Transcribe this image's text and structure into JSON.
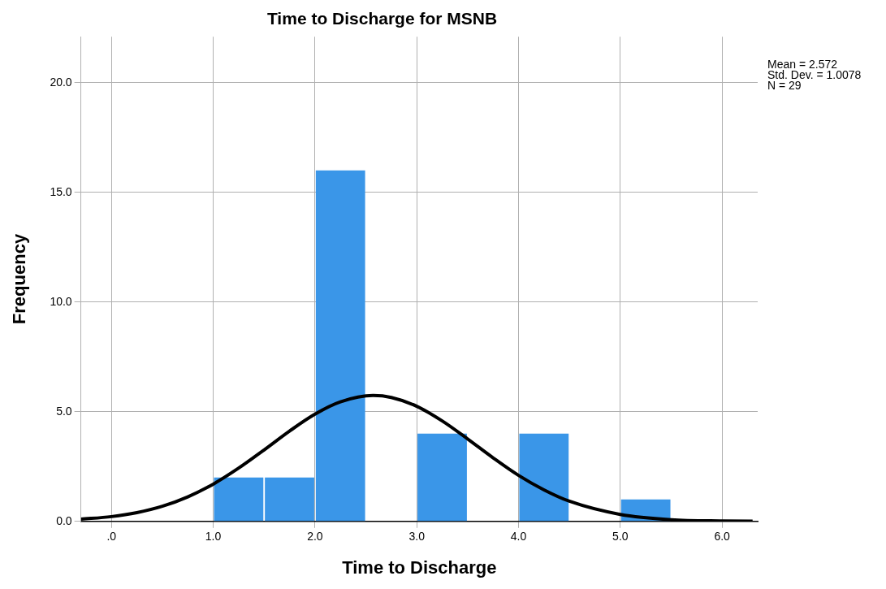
{
  "chart_data": {
    "type": "histogram",
    "title": "Time to Discharge for MSNB",
    "xlabel": "Time to Discharge",
    "ylabel": "Frequency",
    "bins": [
      1.0,
      1.5,
      2.0,
      2.5,
      3.0,
      3.5,
      4.0,
      4.5,
      5.0,
      5.5
    ],
    "values": [
      2,
      2,
      16,
      0,
      4,
      0,
      4,
      0,
      1
    ],
    "color": "#3a96e8",
    "series": [
      {
        "type": "line",
        "color": "#000000",
        "x": [
          -0.3,
          0,
          0.25,
          0.5,
          0.75,
          1.0,
          1.25,
          1.5,
          1.75,
          2.0,
          2.25,
          2.572,
          2.75,
          3.0,
          3.25,
          3.5,
          3.75,
          4.0,
          4.25,
          4.5,
          5.0,
          5.5,
          6.0,
          6.3
        ],
        "values": [
          0.1,
          0.22,
          0.4,
          0.69,
          1.12,
          1.7,
          2.43,
          3.26,
          4.12,
          4.89,
          5.45,
          5.74,
          5.65,
          5.25,
          4.58,
          3.76,
          2.9,
          2.1,
          1.44,
          0.92,
          0.32,
          0.08,
          0.02,
          0.01
        ]
      }
    ],
    "annotations": [
      "Mean = 2.572",
      "Std. Dev. = 1.0078",
      "N = 29"
    ],
    "xlim": [
      -0.3,
      6.35
    ],
    "xticks": [
      {
        "value": 0,
        "label": ".0"
      },
      {
        "value": 1,
        "label": "1.0"
      },
      {
        "value": 2,
        "label": "2.0"
      },
      {
        "value": 3,
        "label": "3.0"
      },
      {
        "value": 4,
        "label": "4.0"
      },
      {
        "value": 5,
        "label": "5.0"
      },
      {
        "value": 6,
        "label": "6.0"
      }
    ],
    "ylim": [
      0,
      22.1
    ],
    "yticks": [
      {
        "value": 0,
        "label": "0.0"
      },
      {
        "value": 5,
        "label": "5.0"
      },
      {
        "value": 10,
        "label": "10.0"
      },
      {
        "value": 15,
        "label": "15.0"
      },
      {
        "value": 20,
        "label": "20.0"
      }
    ],
    "grid": true
  }
}
